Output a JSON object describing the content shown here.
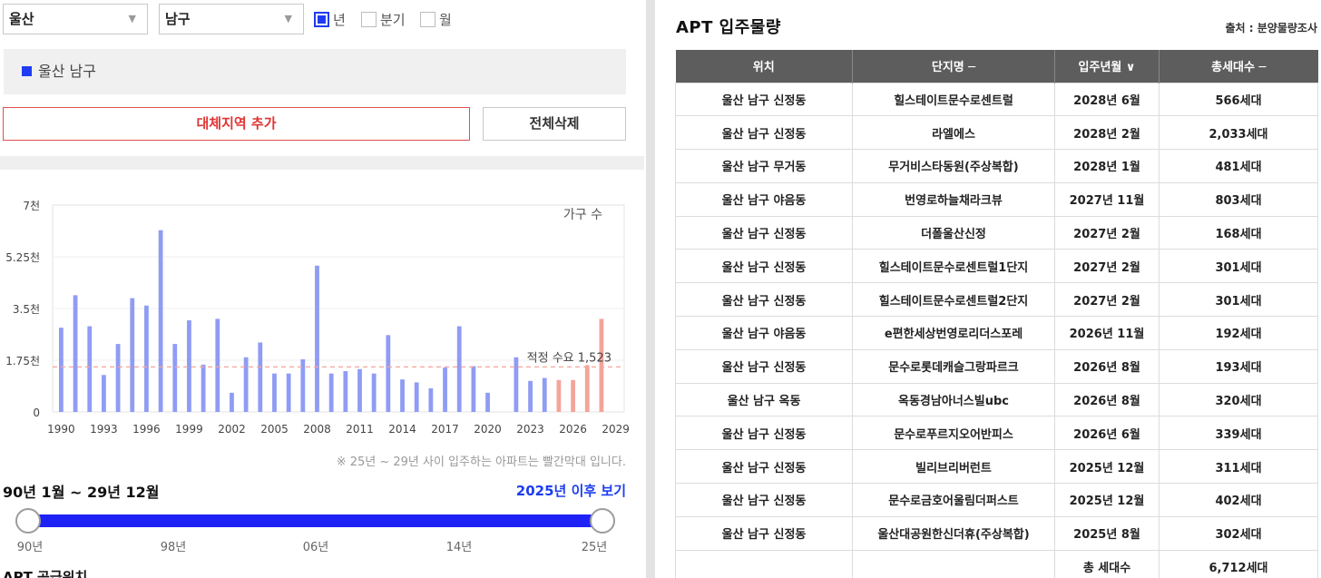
{
  "filters": {
    "region": "울산",
    "district": "남구",
    "period_options": [
      {
        "label": "년",
        "checked": true
      },
      {
        "label": "분기",
        "checked": false
      },
      {
        "label": "월",
        "checked": false
      }
    ]
  },
  "selected_region": "울산 남구",
  "buttons": {
    "add_region": "대체지역 추가",
    "delete_all": "전체삭제"
  },
  "chart_data": {
    "type": "bar",
    "legend_label": "가구 수",
    "y_ticks": [
      "7천",
      "5.25천",
      "3.5천",
      "1.75천",
      "0"
    ],
    "ylim": [
      0,
      7000
    ],
    "x_tick_labels": [
      "1990",
      "1993",
      "1996",
      "1999",
      "2002",
      "2005",
      "2008",
      "2011",
      "2014",
      "2017",
      "2020",
      "2023",
      "2026",
      "2029"
    ],
    "years": [
      1990,
      1991,
      1992,
      1993,
      1994,
      1995,
      1996,
      1997,
      1998,
      1999,
      2000,
      2001,
      2002,
      2003,
      2004,
      2005,
      2006,
      2007,
      2008,
      2009,
      2010,
      2011,
      2012,
      2013,
      2014,
      2015,
      2016,
      2017,
      2018,
      2019,
      2020,
      2021,
      2022,
      2023,
      2024,
      2025,
      2026,
      2027,
      2028,
      2029
    ],
    "values": [
      2850,
      3950,
      2900,
      1250,
      2300,
      3850,
      3600,
      6150,
      2300,
      3100,
      1600,
      3150,
      650,
      1850,
      2350,
      1300,
      1300,
      1780,
      4950,
      1300,
      1380,
      1450,
      1300,
      2600,
      1100,
      1000,
      800,
      1500,
      2900,
      1550,
      650,
      0,
      1850,
      1050,
      1150,
      1080,
      1080,
      1580,
      3150,
      0
    ],
    "highlight_color": "#f4a59a",
    "base_color": "#8f9cf4",
    "highlight_from": 2025,
    "reference_line": {
      "label": "적정 수요 1,523",
      "value": 1523,
      "color": "#f4a59a"
    }
  },
  "chart_note": "※ 25년 ~ 29년 사이 입주하는 아파트는 빨간막대 입니다.",
  "period_range": "90년 1월 ~ 29년 12월",
  "after_link": "2025년 이후 보기",
  "slider": {
    "labels": [
      "90년",
      "98년",
      "06년",
      "14년",
      "25년"
    ],
    "start": "90년",
    "end": "25년"
  },
  "apt_position_title": "APT 공급위치",
  "table": {
    "title": "APT 입주물량",
    "source": "출처 : 분양물량조사",
    "headers": [
      "위치",
      "단지명 ─",
      "입주년월 ∨",
      "총세대수 ─"
    ],
    "rows": [
      [
        "울산 남구 신정동",
        "힐스테이트문수로센트럴",
        "2028년 6월",
        "566세대"
      ],
      [
        "울산 남구 신정동",
        "라엘에스",
        "2028년 2월",
        "2,033세대"
      ],
      [
        "울산 남구 무거동",
        "무거비스타동원(주상복합)",
        "2028년 1월",
        "481세대"
      ],
      [
        "울산 남구 야음동",
        "번영로하늘채라크뷰",
        "2027년 11월",
        "803세대"
      ],
      [
        "울산 남구 신정동",
        "더폴울산신정",
        "2027년 2월",
        "168세대"
      ],
      [
        "울산 남구 신정동",
        "힐스테이트문수로센트럴1단지",
        "2027년 2월",
        "301세대"
      ],
      [
        "울산 남구 신정동",
        "힐스테이트문수로센트럴2단지",
        "2027년 2월",
        "301세대"
      ],
      [
        "울산 남구 야음동",
        "e편한세상번영로리더스포레",
        "2026년 11월",
        "192세대"
      ],
      [
        "울산 남구 신정동",
        "문수로롯데캐슬그랑파르크",
        "2026년 8월",
        "193세대"
      ],
      [
        "울산 남구 옥동",
        "옥동경남아너스빌ubc",
        "2026년 8월",
        "320세대"
      ],
      [
        "울산 남구 신정동",
        "문수로푸르지오어반피스",
        "2026년 6월",
        "339세대"
      ],
      [
        "울산 남구 신정동",
        "빌리브리버런트",
        "2025년 12월",
        "311세대"
      ],
      [
        "울산 남구 신정동",
        "문수로금호어울림더퍼스트",
        "2025년 12월",
        "402세대"
      ],
      [
        "울산 남구 신정동",
        "울산대공원한신더휴(주상복합)",
        "2025년 8월",
        "302세대"
      ]
    ],
    "total_label": "총 세대수",
    "total_value": "6,712세대"
  }
}
